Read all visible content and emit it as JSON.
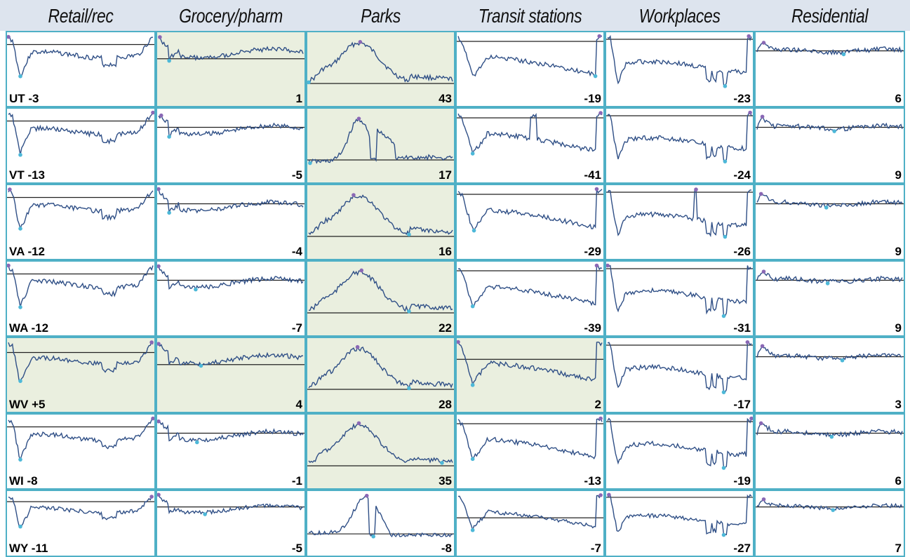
{
  "colors": {
    "border": "#4fb0c6",
    "line": "#2f4f86",
    "baseline": "#222222",
    "max_marker": "#8a68b5",
    "min_marker": "#4db8d8",
    "positive_fill": "#eaefdf",
    "header_bg": "#dde4ee"
  },
  "chart_data": {
    "type": "line",
    "layout": "small-multiples grid",
    "columns": [
      "Retail/rec",
      "Grocery/pharm",
      "Parks",
      "Transit stations",
      "Workplaces",
      "Residential"
    ],
    "rows": [
      {
        "state": "UT",
        "label": "UT -3",
        "values": [
          -3,
          1,
          43,
          -19,
          -23,
          6
        ],
        "profiles": [
          "retail",
          "grocery_pos",
          "parks_hump",
          "transit",
          "work",
          "resid"
        ]
      },
      {
        "state": "VT",
        "label": "VT -13",
        "values": [
          -13,
          -5,
          17,
          -41,
          -24,
          9
        ],
        "profiles": [
          "retail",
          "grocery",
          "parks_spike",
          "transit_spike",
          "work",
          "resid"
        ]
      },
      {
        "state": "VA",
        "label": "VA -12",
        "values": [
          -12,
          -4,
          16,
          -29,
          -26,
          9
        ],
        "profiles": [
          "retail",
          "grocery",
          "parks_hump",
          "transit",
          "work_spike",
          "resid"
        ]
      },
      {
        "state": "WA",
        "label": "WA -12",
        "values": [
          -12,
          -7,
          22,
          -39,
          -31,
          9
        ],
        "profiles": [
          "retail",
          "grocery",
          "parks_hump",
          "transit",
          "work",
          "resid"
        ]
      },
      {
        "state": "WV",
        "label": "WV +5",
        "values": [
          5,
          4,
          28,
          2,
          -17,
          3
        ],
        "profiles": [
          "retail_pos",
          "grocery_pos",
          "parks_hump",
          "transit_pos",
          "work",
          "resid"
        ]
      },
      {
        "state": "WI",
        "label": "WI -8",
        "values": [
          -8,
          -1,
          35,
          -13,
          -19,
          6
        ],
        "profiles": [
          "retail",
          "grocery",
          "parks_hump",
          "transit",
          "work",
          "resid"
        ]
      },
      {
        "state": "WY",
        "label": "WY -11",
        "values": [
          -11,
          -5,
          -8,
          -7,
          -27,
          7
        ],
        "profiles": [
          "retail",
          "grocery",
          "parks_spike_neg",
          "transit_mid",
          "work",
          "resid"
        ]
      }
    ]
  }
}
